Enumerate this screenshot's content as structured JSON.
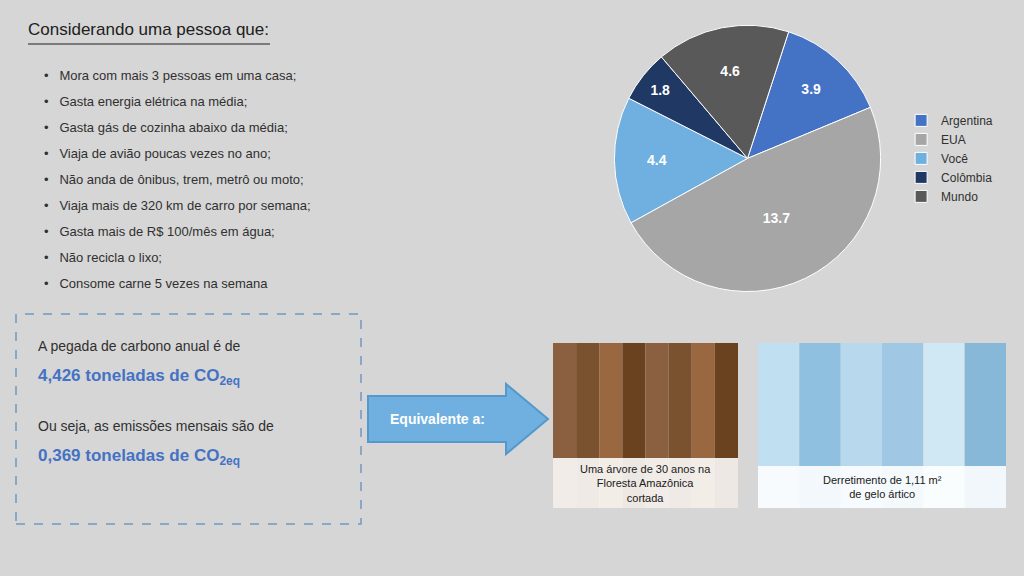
{
  "chart_data": {
    "type": "pie",
    "title": "Considerando uma pessoa que:",
    "categories": [
      "Argentina",
      "EUA",
      "Você",
      "Colômbia",
      "Mundo"
    ],
    "values": [
      3.9,
      13.7,
      4.4,
      1.8,
      4.6
    ],
    "colors": [
      "#4472c4",
      "#a6a6a6",
      "#70b0e0",
      "#1f3864",
      "#595959"
    ],
    "data_labels": true,
    "legend": "right",
    "annotations": [
      "•   Mora com mais 3 pessoas em uma casa;",
      "•   Gasta energia elétrica na média;",
      "•   Gasta gás de cozinha abaixo da média;",
      "•   Viaja de avião poucas vezes no ano;",
      "•   Não anda de ônibus, trem, metrô ou moto;",
      "•   Viaja mais de 320 km de carro por semana;",
      "•   Gasta mais de R$ 100/mês em água;",
      "•   Não recicla o lixo;",
      "•   Consome carne 5 vezes na semana",
      "A pegada de carbono anual é de",
      "4,426 toneladas de CO",
      "2eq",
      "Ou seja, as emissões mensais são de",
      "0,369 toneladas de CO",
      "2eq",
      "Equivalente a:",
      "Uma árvore de 30 anos na\nFloresta Amazônica\ncortada",
      "Derretimento de 1,11 m²\nde gelo ártico"
    ]
  }
}
